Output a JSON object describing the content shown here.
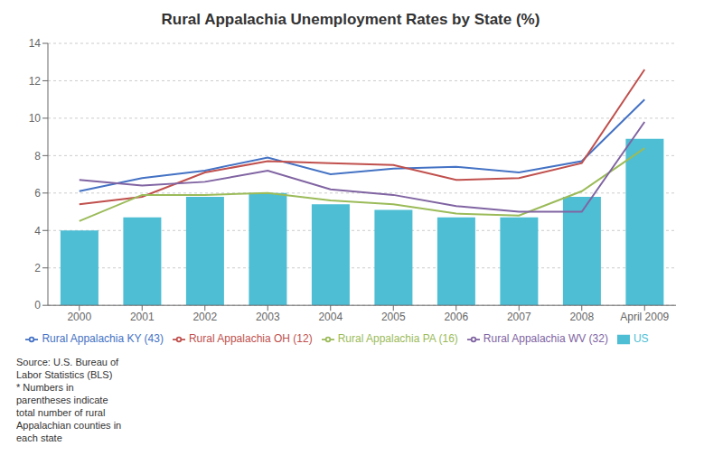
{
  "chart_data": {
    "type": "bar",
    "title": "Rural Appalachia Unemployment Rates by State (%)",
    "categories": [
      "2000",
      "2001",
      "2002",
      "2003",
      "2004",
      "2005",
      "2006",
      "2007",
      "2008",
      "April 2009"
    ],
    "series": [
      {
        "name": "US",
        "type": "bar",
        "color": "#4DBED4",
        "values": [
          4.0,
          4.7,
          5.8,
          6.0,
          5.4,
          5.1,
          4.7,
          4.7,
          5.8,
          8.9
        ]
      },
      {
        "name": "Rural Appalachia KY (43)",
        "type": "line",
        "color": "#4472C4",
        "values": [
          6.1,
          6.8,
          7.2,
          7.9,
          7.0,
          7.3,
          7.4,
          7.1,
          7.7,
          11.0
        ]
      },
      {
        "name": "Rural Appalachia OH (12)",
        "type": "line",
        "color": "#C0504D",
        "values": [
          5.4,
          5.8,
          7.1,
          7.7,
          7.6,
          7.5,
          6.7,
          6.8,
          7.6,
          12.6
        ]
      },
      {
        "name": "Rural Appalachia PA (16)",
        "type": "line",
        "color": "#9BBB59",
        "values": [
          4.5,
          5.9,
          5.9,
          6.0,
          5.6,
          5.4,
          4.9,
          4.8,
          6.1,
          8.4
        ]
      },
      {
        "name": "Rural Appalachia WV (32)",
        "type": "line",
        "color": "#8064A2",
        "values": [
          6.7,
          6.4,
          6.6,
          7.2,
          6.2,
          5.9,
          5.3,
          5.0,
          5.0,
          9.8
        ]
      }
    ],
    "ylim": [
      0,
      14
    ],
    "yticks": [
      0,
      2,
      4,
      6,
      8,
      10,
      12,
      14
    ],
    "grid": true,
    "legend": "bottom",
    "annotations": [
      "Source: U.S. Bureau of\nLabor Statistics (BLS)\n* Numbers in\nparentheses indicate\ntotal number of rural\nAppalachian counties in\neach state"
    ]
  }
}
